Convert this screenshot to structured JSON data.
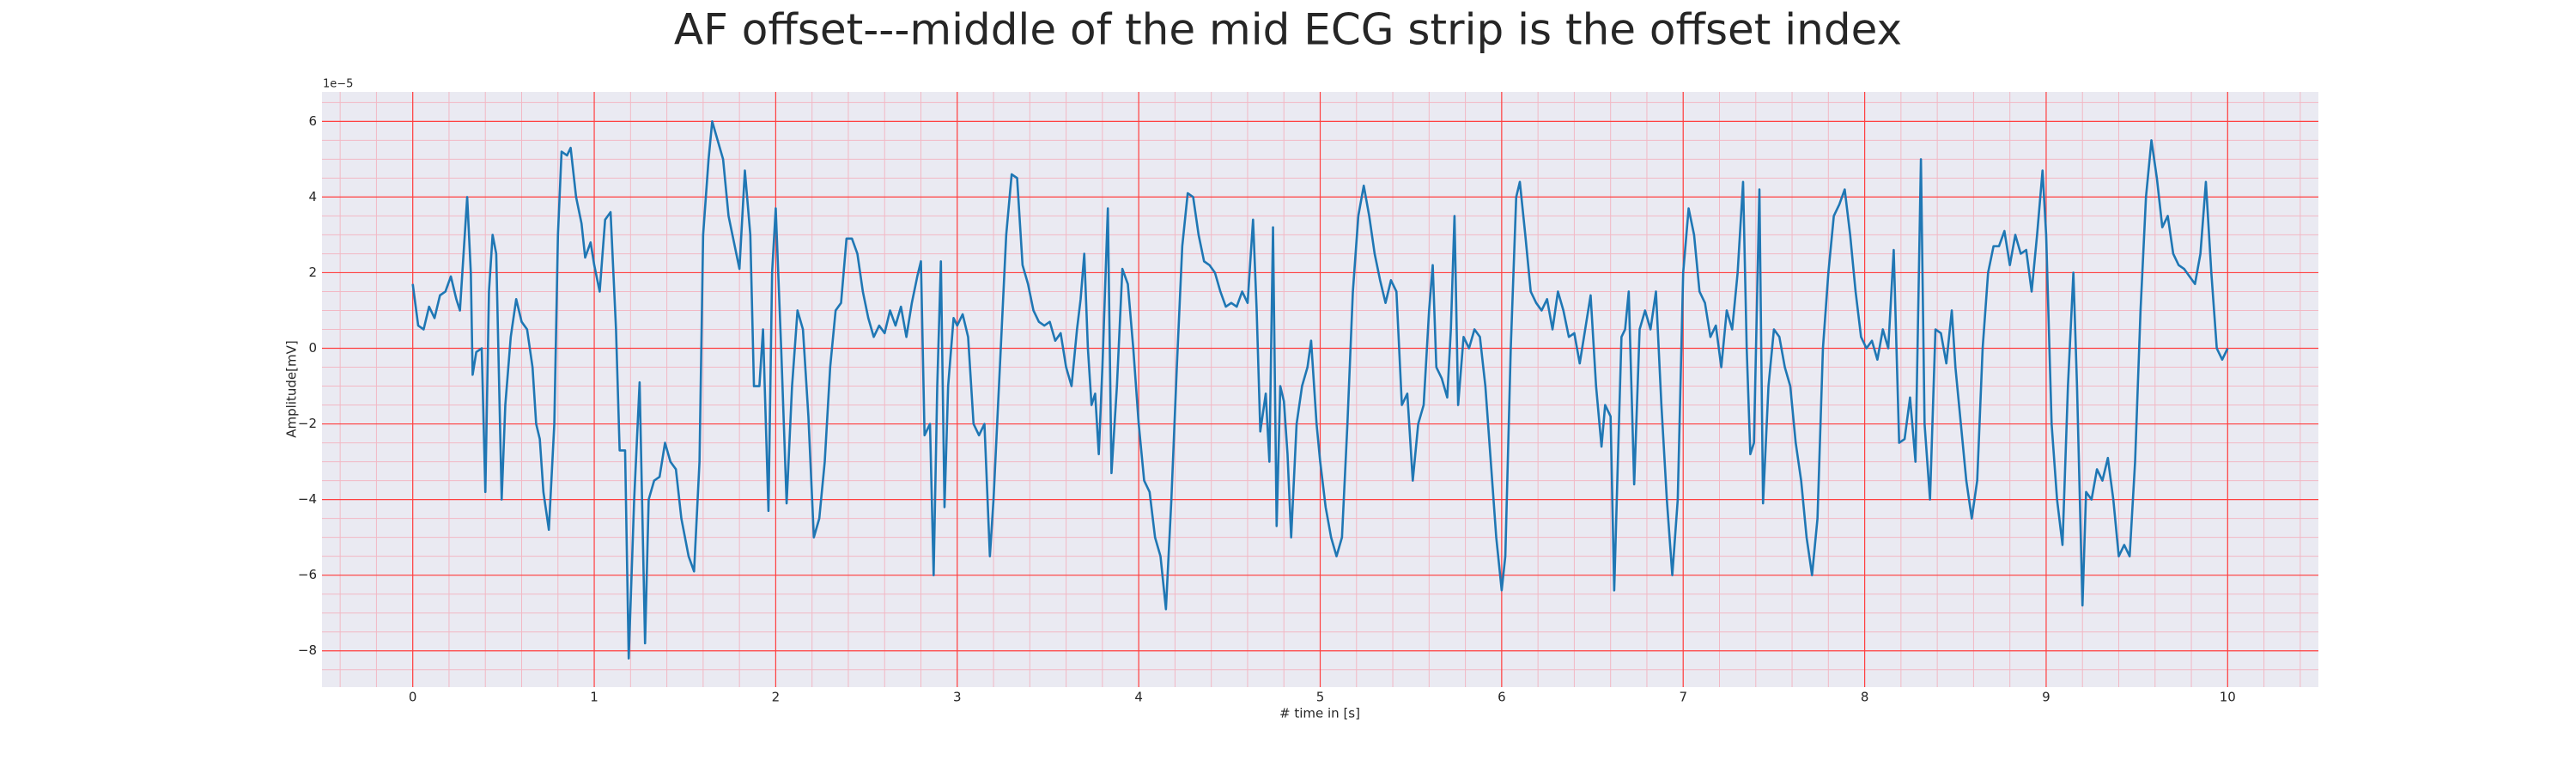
{
  "chart_data": {
    "type": "line",
    "title": "AF offset---middle of the mid ECG strip is the offset index",
    "x_label": "# time in [s]",
    "y_label": "Amplitude[mV]",
    "y_offset_label": "1e−5",
    "xlim": [
      -0.5,
      10.5
    ],
    "ylim": [
      -8.96,
      6.78
    ],
    "xticks": [
      0,
      1,
      2,
      3,
      4,
      5,
      6,
      7,
      8,
      9,
      10
    ],
    "yticks": [
      {
        "value": -8,
        "label": "−8"
      },
      {
        "value": -6,
        "label": "−6"
      },
      {
        "value": -4,
        "label": "−4"
      },
      {
        "value": -2,
        "label": "−2"
      },
      0,
      2,
      4,
      6
    ],
    "grid": true,
    "grid_color": "#ff4040",
    "minor_grid": true,
    "minor_grid_color": "#f2b8c4",
    "background": "#eaeaf2",
    "x": [
      0,
      0.03,
      0.06,
      0.09,
      0.12,
      0.15,
      0.18,
      0.21,
      0.24,
      0.26,
      0.3,
      0.32,
      0.33,
      0.35,
      0.38,
      0.4,
      0.42,
      0.44,
      0.46,
      0.49,
      0.51,
      0.54,
      0.57,
      0.6,
      0.63,
      0.66,
      0.68,
      0.7,
      0.72,
      0.75,
      0.78,
      0.8,
      0.82,
      0.85,
      0.87,
      0.9,
      0.93,
      0.95,
      0.98,
      1.0,
      1.03,
      1.06,
      1.09,
      1.12,
      1.14,
      1.17,
      1.19,
      1.22,
      1.25,
      1.28,
      1.3,
      1.33,
      1.36,
      1.39,
      1.42,
      1.45,
      1.48,
      1.52,
      1.55,
      1.58,
      1.6,
      1.63,
      1.65,
      1.68,
      1.71,
      1.74,
      1.77,
      1.8,
      1.83,
      1.86,
      1.88,
      1.91,
      1.93,
      1.96,
      1.98,
      2.0,
      2.03,
      2.06,
      2.09,
      2.12,
      2.15,
      2.18,
      2.21,
      2.24,
      2.27,
      2.3,
      2.33,
      2.36,
      2.39,
      2.42,
      2.45,
      2.48,
      2.51,
      2.54,
      2.57,
      2.6,
      2.63,
      2.66,
      2.69,
      2.72,
      2.75,
      2.78,
      2.8,
      2.82,
      2.85,
      2.87,
      2.89,
      2.91,
      2.93,
      2.95,
      2.98,
      3.0,
      3.03,
      3.06,
      3.09,
      3.12,
      3.15,
      3.18,
      3.2,
      3.24,
      3.27,
      3.3,
      3.33,
      3.36,
      3.39,
      3.42,
      3.45,
      3.48,
      3.51,
      3.54,
      3.57,
      3.6,
      3.63,
      3.66,
      3.68,
      3.7,
      3.72,
      3.74,
      3.76,
      3.78,
      3.8,
      3.83,
      3.85,
      3.88,
      3.91,
      3.94,
      3.97,
      4.0,
      4.03,
      4.06,
      4.09,
      4.12,
      4.15,
      4.18,
      4.21,
      4.24,
      4.27,
      4.3,
      4.33,
      4.36,
      4.39,
      4.42,
      4.45,
      4.48,
      4.51,
      4.54,
      4.57,
      4.6,
      4.63,
      4.65,
      4.67,
      4.7,
      4.72,
      4.74,
      4.76,
      4.78,
      4.8,
      4.82,
      4.84,
      4.87,
      4.9,
      4.93,
      4.95,
      4.98,
      5.0,
      5.03,
      5.06,
      5.09,
      5.12,
      5.15,
      5.18,
      5.21,
      5.24,
      5.27,
      5.3,
      5.33,
      5.36,
      5.39,
      5.42,
      5.45,
      5.48,
      5.51,
      5.54,
      5.57,
      5.6,
      5.62,
      5.64,
      5.67,
      5.7,
      5.72,
      5.74,
      5.76,
      5.79,
      5.82,
      5.85,
      5.88,
      5.91,
      5.94,
      5.97,
      6.0,
      6.02,
      6.05,
      6.08,
      6.1,
      6.13,
      6.16,
      6.19,
      6.22,
      6.25,
      6.28,
      6.31,
      6.34,
      6.37,
      6.4,
      6.43,
      6.46,
      6.49,
      6.52,
      6.55,
      6.57,
      6.6,
      6.62,
      6.64,
      6.66,
      6.68,
      6.7,
      6.73,
      6.76,
      6.79,
      6.82,
      6.85,
      6.88,
      6.91,
      6.94,
      6.97,
      7.0,
      7.03,
      7.06,
      7.09,
      7.12,
      7.15,
      7.18,
      7.21,
      7.24,
      7.27,
      7.3,
      7.33,
      7.35,
      7.37,
      7.39,
      7.42,
      7.44,
      7.47,
      7.5,
      7.53,
      7.56,
      7.59,
      7.62,
      7.65,
      7.68,
      7.71,
      7.74,
      7.77,
      7.8,
      7.83,
      7.86,
      7.89,
      7.92,
      7.95,
      7.98,
      8.01,
      8.04,
      8.07,
      8.1,
      8.13,
      8.16,
      8.19,
      8.22,
      8.25,
      8.28,
      8.31,
      8.33,
      8.36,
      8.39,
      8.42,
      8.45,
      8.48,
      8.5,
      8.53,
      8.56,
      8.59,
      8.62,
      8.65,
      8.68,
      8.71,
      8.74,
      8.77,
      8.8,
      8.83,
      8.86,
      8.89,
      8.92,
      8.95,
      8.98,
      9.0,
      9.03,
      9.06,
      9.09,
      9.12,
      9.15,
      9.17,
      9.2,
      9.22,
      9.25,
      9.28,
      9.31,
      9.34,
      9.37,
      9.4,
      9.43,
      9.46,
      9.49,
      9.52,
      9.55,
      9.58,
      9.61,
      9.64,
      9.67,
      9.7,
      9.73,
      9.76,
      9.79,
      9.82,
      9.85,
      9.88,
      9.91,
      9.94,
      9.97,
      10.0
    ],
    "series": [
      {
        "color": "#1f77b4",
        "values": [
          1.7,
          0.6,
          0.5,
          1.1,
          0.8,
          1.4,
          1.5,
          1.9,
          1.3,
          1.0,
          4.0,
          2.0,
          -0.7,
          -0.1,
          0,
          -3.8,
          1.5,
          3.0,
          2.5,
          -4.0,
          -1.5,
          0.3,
          1.3,
          0.7,
          0.5,
          -0.5,
          -2.0,
          -2.4,
          -3.8,
          -4.8,
          -2.0,
          3.0,
          5.2,
          5.1,
          5.3,
          4.0,
          3.3,
          2.4,
          2.8,
          2.2,
          1.5,
          3.4,
          3.6,
          0.5,
          -2.7,
          -2.7,
          -8.2,
          -4.0,
          -0.9,
          -7.8,
          -4.0,
          -3.5,
          -3.4,
          -2.5,
          -3.0,
          -3.2,
          -4.5,
          -5.5,
          -5.9,
          -3.0,
          3.0,
          5.0,
          6.0,
          5.5,
          5.0,
          3.5,
          2.8,
          2.1,
          4.7,
          3.0,
          -1.0,
          -1.0,
          0.5,
          -4.3,
          2.0,
          3.7,
          0.0,
          -4.1,
          -1.0,
          1.0,
          0.5,
          -1.8,
          -5.0,
          -4.5,
          -3.0,
          -0.5,
          1.0,
          1.2,
          2.9,
          2.9,
          2.5,
          1.5,
          0.8,
          0.3,
          0.6,
          0.4,
          1.0,
          0.6,
          1.1,
          0.3,
          1.2,
          1.9,
          2.3,
          -2.3,
          -2.0,
          -6.0,
          -1.0,
          2.3,
          -4.2,
          -1.0,
          0.8,
          0.6,
          0.9,
          0.3,
          -2.0,
          -2.3,
          -2.0,
          -5.5,
          -4.0,
          0.0,
          3.0,
          4.6,
          4.5,
          2.2,
          1.7,
          1.0,
          0.7,
          0.6,
          0.7,
          0.2,
          0.4,
          -0.5,
          -1.0,
          0.5,
          1.3,
          2.5,
          0.0,
          -1.5,
          -1.2,
          -2.8,
          -0.5,
          3.7,
          -3.3,
          -1.0,
          2.1,
          1.7,
          0.0,
          -2.0,
          -3.5,
          -3.8,
          -5.0,
          -5.5,
          -6.9,
          -4.0,
          -0.5,
          2.7,
          4.1,
          4.0,
          3.0,
          2.3,
          2.2,
          2.0,
          1.5,
          1.1,
          1.2,
          1.1,
          1.5,
          1.2,
          3.4,
          1.0,
          -2.2,
          -1.2,
          -3.0,
          3.2,
          -4.7,
          -1.0,
          -1.4,
          -2.8,
          -5.0,
          -2.0,
          -1.0,
          -0.5,
          0.2,
          -2.0,
          -3.0,
          -4.2,
          -5.0,
          -5.5,
          -5.0,
          -2.0,
          1.5,
          3.5,
          4.3,
          3.5,
          2.5,
          1.8,
          1.2,
          1.8,
          1.5,
          -1.5,
          -1.2,
          -3.5,
          -2.0,
          -1.5,
          1.0,
          2.2,
          -0.5,
          -0.8,
          -1.3,
          0.5,
          3.5,
          -1.5,
          0.3,
          0.0,
          0.5,
          0.3,
          -1.0,
          -3.0,
          -5.0,
          -6.4,
          -5.5,
          0.0,
          4.0,
          4.4,
          3.0,
          1.5,
          1.2,
          1.0,
          1.3,
          0.5,
          1.5,
          1.0,
          0.3,
          0.4,
          -0.4,
          0.5,
          1.4,
          -1.0,
          -2.6,
          -1.5,
          -1.8,
          -6.4,
          -3.0,
          0.3,
          0.5,
          1.5,
          -3.6,
          0.5,
          1.0,
          0.5,
          1.5,
          -1.5,
          -4.0,
          -6.0,
          -4.0,
          2.0,
          3.7,
          3.0,
          1.5,
          1.2,
          0.3,
          0.6,
          -0.5,
          1.0,
          0.5,
          2.0,
          4.4,
          0.0,
          -2.8,
          -2.5,
          4.2,
          -4.1,
          -1.0,
          0.5,
          0.3,
          -0.5,
          -1.0,
          -2.5,
          -3.5,
          -5.0,
          -6.0,
          -4.5,
          0.0,
          2.0,
          3.5,
          3.8,
          4.2,
          3.0,
          1.5,
          0.3,
          0.0,
          0.2,
          -0.3,
          0.5,
          0.0,
          2.6,
          -2.5,
          -2.4,
          -1.3,
          -3.0,
          5.0,
          -2.0,
          -4.0,
          0.5,
          0.4,
          -0.4,
          1.0,
          -0.5,
          -2.0,
          -3.5,
          -4.5,
          -3.5,
          0.0,
          2.0,
          2.7,
          2.7,
          3.1,
          2.2,
          3.0,
          2.5,
          2.6,
          1.5,
          3.0,
          4.7,
          3.0,
          -2.0,
          -4.0,
          -5.2,
          -1.0,
          2.0,
          -1.0,
          -6.8,
          -3.8,
          -4.0,
          -3.2,
          -3.5,
          -2.9,
          -4.0,
          -5.5,
          -5.2,
          -5.5,
          -3.0,
          1.0,
          4.0,
          5.5,
          4.5,
          3.2,
          3.5,
          2.5,
          2.2,
          2.1,
          1.9,
          1.7,
          2.5,
          4.4,
          2.0,
          0.0,
          -0.3,
          0.0
        ]
      }
    ]
  }
}
